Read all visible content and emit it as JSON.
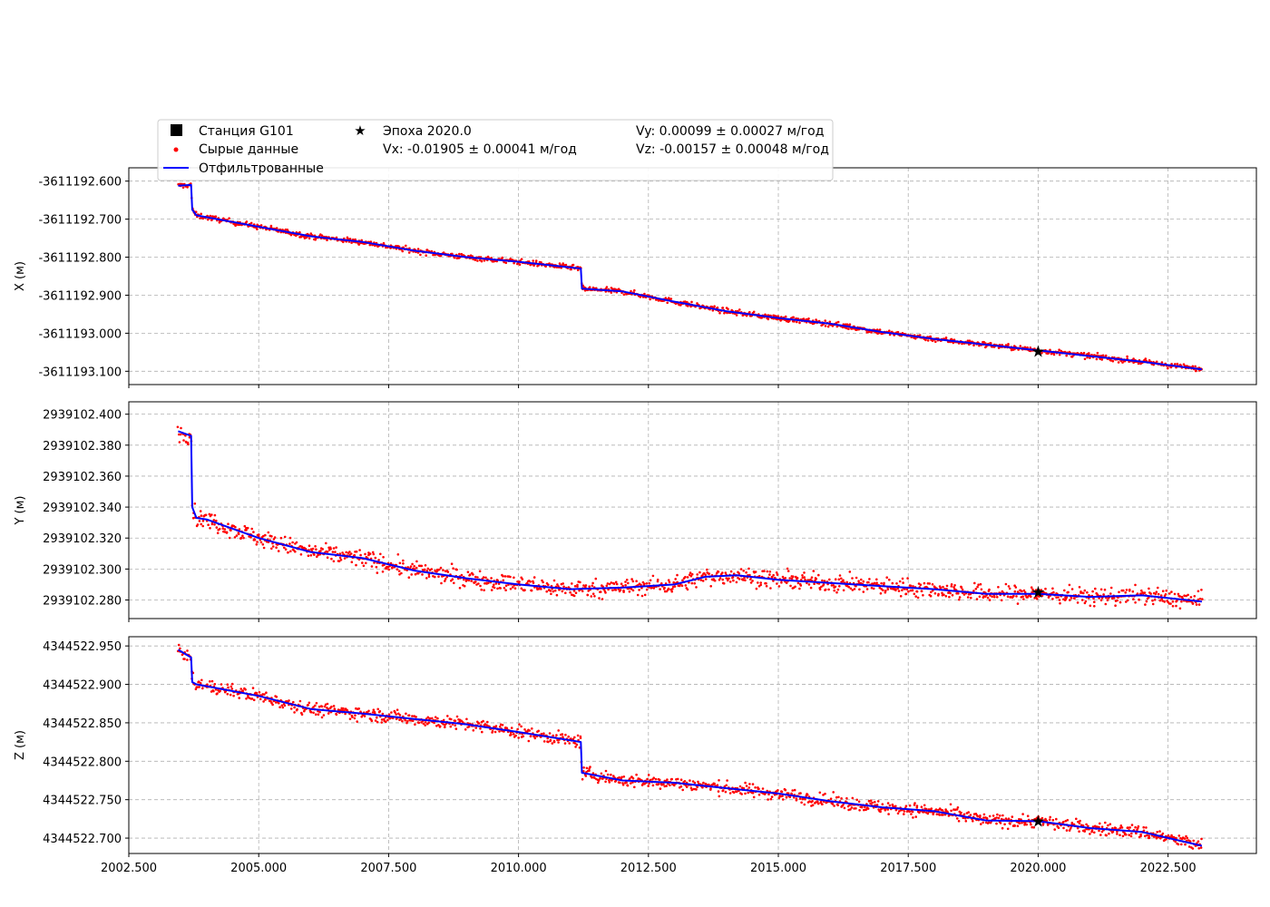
{
  "legend": {
    "station": "Станция G101",
    "raw": "Сырые данные",
    "filtered": "Отфильтрованные",
    "epoch": "Эпоха 2020.0",
    "vx": "Vx: -0.01905 ± 0.00041 м/год",
    "vy": "Vy: 0.00099 ± 0.00027 м/год",
    "vz": "Vz: -0.00157 ± 0.00048 м/год"
  },
  "colors": {
    "raw": "#ff0000",
    "filtered": "#0000ff",
    "epoch_marker": "#000000",
    "grid": "#b0b0b0"
  },
  "chart_data": [
    {
      "type": "line",
      "ylabel": "X (м)",
      "xlim": [
        2002.5,
        2024.2
      ],
      "ylim": [
        -3611193.135,
        -3611192.565
      ],
      "x_ticks": [
        "2002.500",
        "2005.000",
        "2007.500",
        "2010.000",
        "2012.500",
        "2015.000",
        "2017.500",
        "2020.000",
        "2022.500"
      ],
      "y_ticks": [
        "-3611192.600",
        "-3611192.700",
        "-3611192.800",
        "-3611192.900",
        "-3611193.000",
        "-3611193.100"
      ],
      "x_tick_labels_shown": false,
      "grid": true,
      "series": [
        {
          "name": "Отфильтрованные",
          "style": "line",
          "x": [
            2003.45,
            2003.7,
            2003.72,
            2003.8,
            2005,
            2006,
            2007,
            2008,
            2009,
            2010,
            2011.2,
            2011.22,
            2012,
            2013,
            2014,
            2015,
            2016,
            2017,
            2018,
            2019,
            2020,
            2021,
            2022,
            2023.15
          ],
          "y": [
            -3611192.612,
            -3611192.61,
            -3611192.675,
            -3611192.69,
            -3611192.72,
            -3611192.745,
            -3611192.76,
            -3611192.783,
            -3611192.8,
            -3611192.812,
            -3611192.83,
            -3611192.883,
            -3611192.89,
            -3611192.917,
            -3611192.942,
            -3611192.96,
            -3611192.975,
            -3611192.997,
            -3611193.015,
            -3611193.03,
            -3611193.045,
            -3611193.06,
            -3611193.075,
            -3611193.095
          ]
        },
        {
          "name": "Сырые данные",
          "style": "scatter",
          "noise": 0.005
        }
      ],
      "epoch_marker": {
        "x": 2020.0,
        "y": -3611193.048
      }
    },
    {
      "type": "line",
      "ylabel": "Y (м)",
      "xlim": [
        2002.5,
        2024.2
      ],
      "ylim": [
        2939102.268,
        2939102.408
      ],
      "x_ticks": [
        "2002.500",
        "2005.000",
        "2007.500",
        "2010.000",
        "2012.500",
        "2015.000",
        "2017.500",
        "2020.000",
        "2022.500"
      ],
      "y_ticks": [
        "2939102.400",
        "2939102.380",
        "2939102.360",
        "2939102.340",
        "2939102.320",
        "2939102.300",
        "2939102.280"
      ],
      "x_tick_labels_shown": false,
      "grid": true,
      "series": [
        {
          "name": "Отфильтрованные",
          "style": "line",
          "x": [
            2003.45,
            2003.7,
            2003.72,
            2003.8,
            2004,
            2005,
            2006,
            2007,
            2008,
            2009,
            2010,
            2011,
            2012,
            2013,
            2013.6,
            2014.2,
            2015,
            2016,
            2017,
            2018,
            2019,
            2020,
            2021,
            2022,
            2023.15
          ],
          "y": [
            2939102.389,
            2939102.386,
            2939102.34,
            2939102.333,
            2939102.332,
            2939102.32,
            2939102.311,
            2939102.307,
            2939102.299,
            2939102.294,
            2939102.29,
            2939102.287,
            2939102.288,
            2939102.29,
            2939102.295,
            2939102.296,
            2939102.293,
            2939102.291,
            2939102.289,
            2939102.287,
            2939102.284,
            2939102.284,
            2939102.282,
            2939102.283,
            2939102.279
          ]
        },
        {
          "name": "Сырые данные",
          "style": "scatter",
          "noise": 0.004
        }
      ],
      "epoch_marker": {
        "x": 2020.0,
        "y": 2939102.285
      }
    },
    {
      "type": "line",
      "ylabel": "Z (м)",
      "xlim": [
        2002.5,
        2024.2
      ],
      "ylim": [
        4344522.68,
        4344522.962
      ],
      "x_ticks": [
        "2002.500",
        "2005.000",
        "2007.500",
        "2010.000",
        "2012.500",
        "2015.000",
        "2017.500",
        "2020.000",
        "2022.500"
      ],
      "y_ticks": [
        "4344522.950",
        "4344522.900",
        "4344522.850",
        "4344522.800",
        "4344522.750",
        "4344522.700"
      ],
      "x_tick_labels_shown": true,
      "grid": true,
      "series": [
        {
          "name": "Отфильтрованные",
          "style": "line",
          "x": [
            2003.45,
            2003.7,
            2003.72,
            2003.8,
            2005,
            2006,
            2007,
            2008,
            2009,
            2010,
            2011.2,
            2011.22,
            2012,
            2013,
            2014,
            2015,
            2016,
            2017,
            2018,
            2019,
            2020,
            2021,
            2022,
            2023.15
          ],
          "y": [
            4344522.945,
            4344522.935,
            4344522.903,
            4344522.9,
            4344522.885,
            4344522.868,
            4344522.862,
            4344522.855,
            4344522.848,
            4344522.838,
            4344522.825,
            4344522.785,
            4344522.775,
            4344522.772,
            4344522.765,
            4344522.758,
            4344522.748,
            4344522.74,
            4344522.735,
            4344522.723,
            4344522.722,
            4344522.713,
            4344522.708,
            4344522.69
          ]
        },
        {
          "name": "Сырые данные",
          "style": "scatter",
          "noise": 0.006
        }
      ],
      "epoch_marker": {
        "x": 2020.0,
        "y": 4344522.722
      }
    }
  ]
}
